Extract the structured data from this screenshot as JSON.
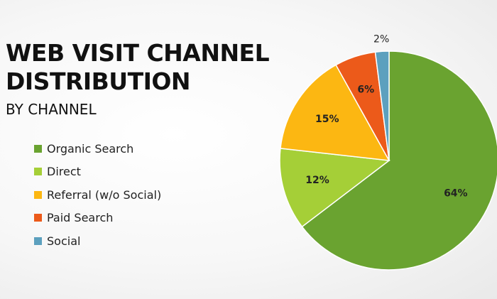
{
  "chart_data": {
    "type": "pie",
    "title_lines": [
      "WEB VISIT CHANNEL",
      "DISTRIBUTION"
    ],
    "subtitle": "BY CHANNEL",
    "legend_position": "left",
    "slices": [
      {
        "name": "Organic Search",
        "value": 64,
        "label": "64%",
        "color": "#6aa330"
      },
      {
        "name": "Direct",
        "value": 12,
        "label": "12%",
        "color": "#a5cf37"
      },
      {
        "name": "Referral (w/o Social)",
        "value": 15,
        "label": "15%",
        "color": "#fcb712"
      },
      {
        "name": "Paid Search",
        "value": 6,
        "label": "6%",
        "color": "#ec5a1a"
      },
      {
        "name": "Social",
        "value": 2,
        "label": "2%",
        "color": "#5ca0be"
      }
    ]
  }
}
